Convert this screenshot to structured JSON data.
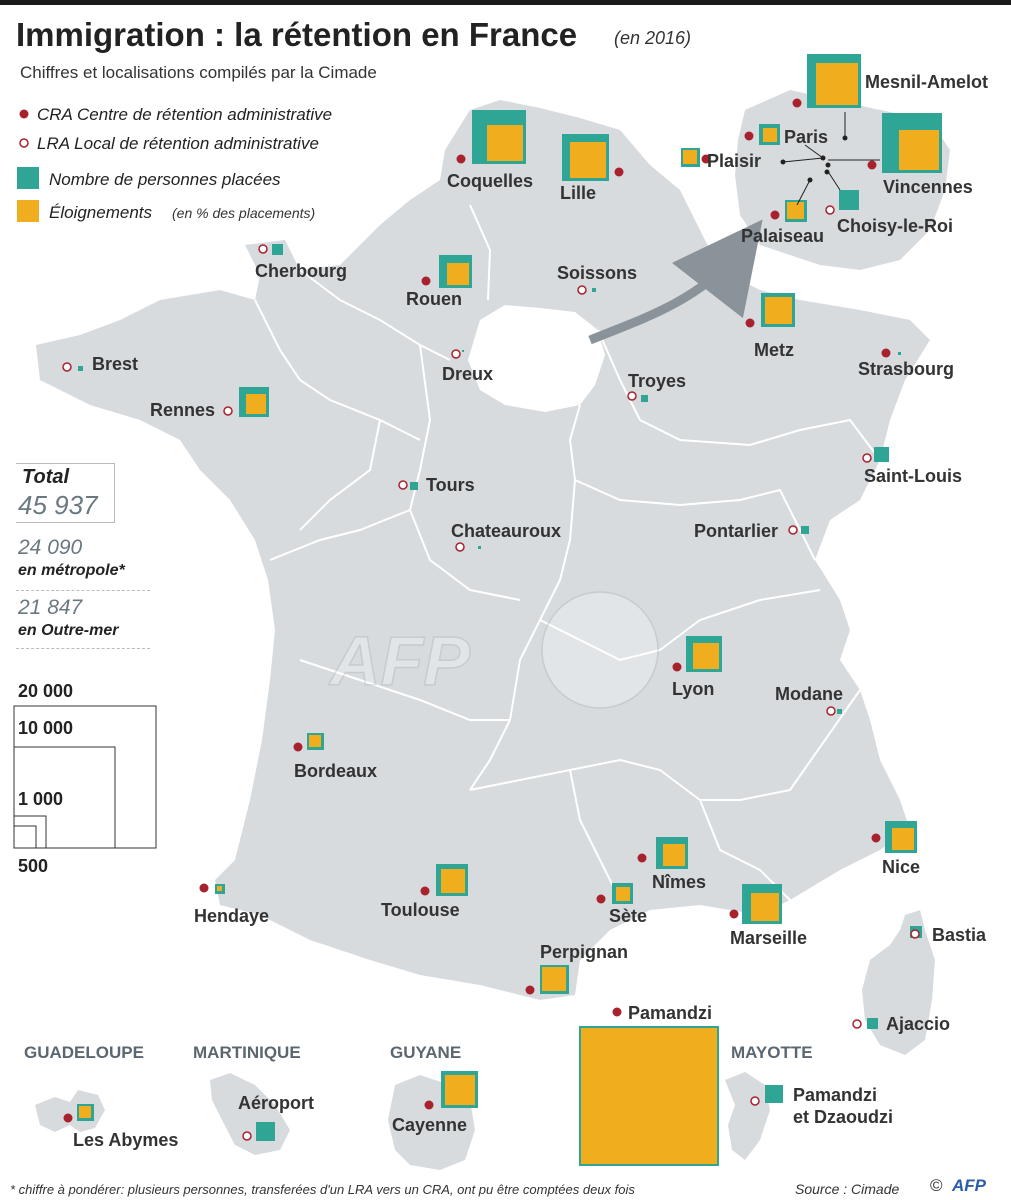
{
  "title": "Immigration : la rétention en France",
  "title_date": "(en 2016)",
  "subtitle": "Chiffres et localisations compilés par la Cimade",
  "legend": {
    "cra": "CRA  Centre de rétention administrative",
    "lra": "LRA  Local de rétention administrative",
    "placees": "Nombre de personnes placées",
    "eloignements": "Éloignements",
    "eloignements_note": "(en % des placements)"
  },
  "stats": {
    "total_label": "Total",
    "total_value": "45 937",
    "metro_value": "24 090",
    "metro_label": "en métropole*",
    "outremer_value": "21 847",
    "outremer_label": "en Outre-mer"
  },
  "scale": [
    "20 000",
    "10 000",
    "1 000",
    "500"
  ],
  "colors": {
    "placees": "#2fa595",
    "eloignements": "#f0ad1e",
    "cra_dot": "#a8222e",
    "land": "#d7dbde",
    "border": "#ffffff"
  },
  "centers": [
    {
      "name": "Coquelles",
      "type": "CRA"
    },
    {
      "name": "Lille",
      "type": "CRA"
    },
    {
      "name": "Cherbourg",
      "type": "LRA"
    },
    {
      "name": "Rouen",
      "type": "CRA"
    },
    {
      "name": "Soissons",
      "type": "LRA"
    },
    {
      "name": "Brest",
      "type": "LRA"
    },
    {
      "name": "Dreux",
      "type": "LRA"
    },
    {
      "name": "Rennes",
      "type": "LRA"
    },
    {
      "name": "Metz",
      "type": "CRA"
    },
    {
      "name": "Strasbourg",
      "type": "CRA"
    },
    {
      "name": "Troyes",
      "type": "LRA"
    },
    {
      "name": "Tours",
      "type": "LRA"
    },
    {
      "name": "Saint-Louis",
      "type": "LRA"
    },
    {
      "name": "Chateauroux",
      "type": "LRA"
    },
    {
      "name": "Pontarlier",
      "type": "LRA"
    },
    {
      "name": "Lyon",
      "type": "CRA"
    },
    {
      "name": "Modane",
      "type": "LRA"
    },
    {
      "name": "Bordeaux",
      "type": "CRA"
    },
    {
      "name": "Nice",
      "type": "CRA"
    },
    {
      "name": "Nîmes",
      "type": "CRA"
    },
    {
      "name": "Hendaye",
      "type": "CRA"
    },
    {
      "name": "Toulouse",
      "type": "CRA"
    },
    {
      "name": "Sète",
      "type": "CRA"
    },
    {
      "name": "Marseille",
      "type": "CRA"
    },
    {
      "name": "Bastia",
      "type": "LRA"
    },
    {
      "name": "Perpignan",
      "type": "CRA"
    },
    {
      "name": "Ajaccio",
      "type": "LRA"
    },
    {
      "name": "Pamandzi",
      "type": "CRA"
    },
    {
      "name": "Les Abymes",
      "type": "CRA"
    },
    {
      "name": "Aéroport",
      "type": "LRA"
    },
    {
      "name": "Cayenne",
      "type": "CRA"
    },
    {
      "name": "Pamandzi et Dzaoudzi",
      "type": "LRA"
    },
    {
      "name": "Mesnil-Amelot",
      "type": "CRA"
    },
    {
      "name": "Paris",
      "type": "CRA"
    },
    {
      "name": "Plaisir",
      "type": "CRA"
    },
    {
      "name": "Vincennes",
      "type": "CRA"
    },
    {
      "name": "Choisy-le-Roi",
      "type": "LRA"
    },
    {
      "name": "Palaiseau",
      "type": "CRA"
    }
  ],
  "overseas": [
    "GUADELOUPE",
    "MARTINIQUE",
    "GUYANE",
    "MAYOTTE"
  ],
  "watermark": "AFP",
  "footnote": "* chiffre à pondérer: plusieurs personnes, transferées d'un LRA vers un CRA, ont pu être comptées deux fois",
  "source": "Source : Cimade",
  "copyright": "©",
  "logo": "AFP"
}
